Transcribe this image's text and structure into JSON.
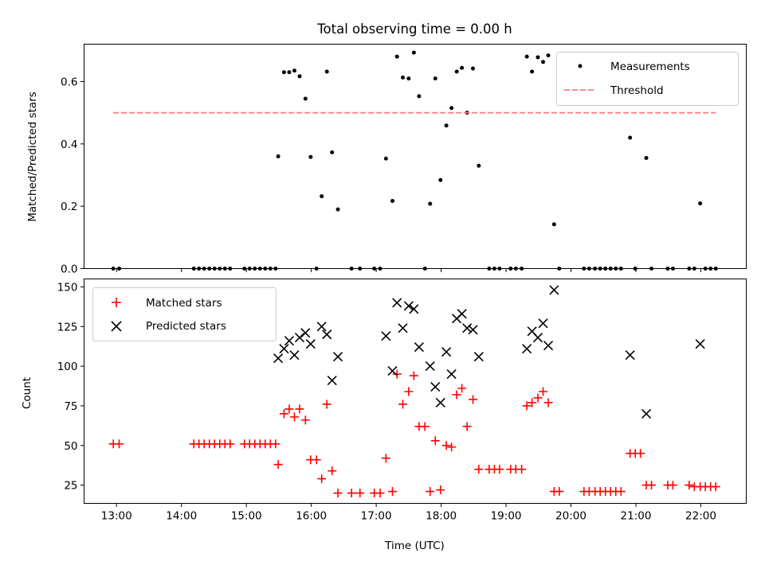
{
  "chart_data": [
    {
      "type": "scatter",
      "title": "Total observing time = 0.00 h",
      "ylabel": "Matched/Predicted stars",
      "xlabel": "",
      "xlim": [
        12.5,
        22.7
      ],
      "ylim": [
        0,
        0.72
      ],
      "yticks": [
        0.0,
        0.2,
        0.4,
        0.6
      ],
      "ytick_labels": [
        "0.0",
        "0.2",
        "0.4",
        "0.6"
      ],
      "legend": {
        "placement": "top-right",
        "entries": [
          "Measurements",
          "Threshold"
        ]
      },
      "series": [
        {
          "name": "Measurements",
          "marker": "dot",
          "color": "#000000",
          "points": [
            [
              12.95,
              0.0
            ],
            [
              13.04,
              0.0
            ],
            [
              14.19,
              0.0
            ],
            [
              14.27,
              0.0
            ],
            [
              14.35,
              0.0
            ],
            [
              14.43,
              0.0
            ],
            [
              14.51,
              0.0
            ],
            [
              14.59,
              0.0
            ],
            [
              14.67,
              0.0
            ],
            [
              14.75,
              0.0
            ],
            [
              14.97,
              0.0
            ],
            [
              15.05,
              0.0
            ],
            [
              15.13,
              0.0
            ],
            [
              15.21,
              0.0
            ],
            [
              15.29,
              0.0
            ],
            [
              15.37,
              0.0
            ],
            [
              15.45,
              0.0
            ],
            [
              15.49,
              0.36
            ],
            [
              15.58,
              0.63
            ],
            [
              15.66,
              0.63
            ],
            [
              15.74,
              0.635
            ],
            [
              15.82,
              0.617
            ],
            [
              15.91,
              0.545
            ],
            [
              15.99,
              0.358
            ],
            [
              16.08,
              0.0
            ],
            [
              16.16,
              0.232
            ],
            [
              16.24,
              0.632
            ],
            [
              16.32,
              0.373
            ],
            [
              16.41,
              0.19
            ],
            [
              16.62,
              0.0
            ],
            [
              16.75,
              0.0
            ],
            [
              16.97,
              0.0
            ],
            [
              17.06,
              0.0
            ],
            [
              17.15,
              0.353
            ],
            [
              17.25,
              0.217
            ],
            [
              17.32,
              0.68
            ],
            [
              17.41,
              0.613
            ],
            [
              17.5,
              0.61
            ],
            [
              17.58,
              0.693
            ],
            [
              17.66,
              0.553
            ],
            [
              17.75,
              0.0
            ],
            [
              17.83,
              0.208
            ],
            [
              17.91,
              0.61
            ],
            [
              17.99,
              0.284
            ],
            [
              18.08,
              0.459
            ],
            [
              18.16,
              0.515
            ],
            [
              18.24,
              0.632
            ],
            [
              18.32,
              0.644
            ],
            [
              18.4,
              0.5
            ],
            [
              18.49,
              0.642
            ],
            [
              18.58,
              0.33
            ],
            [
              18.74,
              0.0
            ],
            [
              18.82,
              0.0
            ],
            [
              18.9,
              0.0
            ],
            [
              19.07,
              0.0
            ],
            [
              19.15,
              0.0
            ],
            [
              19.24,
              0.0
            ],
            [
              19.32,
              0.68
            ],
            [
              19.4,
              0.632
            ],
            [
              19.49,
              0.678
            ],
            [
              19.57,
              0.663
            ],
            [
              19.65,
              0.684
            ],
            [
              19.74,
              0.142
            ],
            [
              19.82,
              0.0
            ],
            [
              20.2,
              0.0
            ],
            [
              20.28,
              0.0
            ],
            [
              20.37,
              0.0
            ],
            [
              20.45,
              0.0
            ],
            [
              20.53,
              0.0
            ],
            [
              20.61,
              0.0
            ],
            [
              20.69,
              0.0
            ],
            [
              20.77,
              0.0
            ],
            [
              20.91,
              0.42
            ],
            [
              20.99,
              0.0
            ],
            [
              21.16,
              0.355
            ],
            [
              21.24,
              0.0
            ],
            [
              21.49,
              0.0
            ],
            [
              21.57,
              0.0
            ],
            [
              21.82,
              0.0
            ],
            [
              21.9,
              0.0
            ],
            [
              21.99,
              0.209
            ],
            [
              22.07,
              0.0
            ],
            [
              22.15,
              0.0
            ],
            [
              22.23,
              0.0
            ]
          ]
        },
        {
          "name": "Threshold",
          "line_style": "dashed",
          "color": "#ff7f7f",
          "points": [
            [
              12.95,
              0.5
            ],
            [
              22.23,
              0.5
            ]
          ]
        }
      ]
    },
    {
      "type": "scatter",
      "title": "",
      "ylabel": "Count",
      "xlabel": "Time (UTC)",
      "xlim": [
        12.5,
        22.7
      ],
      "ylim": [
        13.5,
        155
      ],
      "xticks": [
        13,
        14,
        15,
        16,
        17,
        18,
        19,
        20,
        21,
        22
      ],
      "xtick_labels": [
        "13:00",
        "14:00",
        "15:00",
        "16:00",
        "17:00",
        "18:00",
        "19:00",
        "20:00",
        "21:00",
        "22:00"
      ],
      "yticks": [
        25,
        50,
        75,
        100,
        125,
        150
      ],
      "ytick_labels": [
        "25",
        "50",
        "75",
        "100",
        "125",
        "150"
      ],
      "legend": {
        "placement": "top-left",
        "entries": [
          "Matched stars",
          "Predicted stars"
        ]
      },
      "series": [
        {
          "name": "Matched stars",
          "marker": "plus",
          "color": "#ff0000",
          "points": [
            [
              12.95,
              51
            ],
            [
              13.04,
              51
            ],
            [
              14.19,
              51
            ],
            [
              14.27,
              51
            ],
            [
              14.35,
              51
            ],
            [
              14.43,
              51
            ],
            [
              14.51,
              51
            ],
            [
              14.59,
              51
            ],
            [
              14.67,
              51
            ],
            [
              14.75,
              51
            ],
            [
              14.97,
              51
            ],
            [
              15.05,
              51
            ],
            [
              15.13,
              51
            ],
            [
              15.21,
              51
            ],
            [
              15.29,
              51
            ],
            [
              15.37,
              51
            ],
            [
              15.45,
              51
            ],
            [
              15.49,
              38
            ],
            [
              15.58,
              70
            ],
            [
              15.66,
              73
            ],
            [
              15.74,
              68
            ],
            [
              15.82,
              73
            ],
            [
              15.91,
              66
            ],
            [
              15.99,
              41
            ],
            [
              16.08,
              41
            ],
            [
              16.16,
              29
            ],
            [
              16.24,
              76
            ],
            [
              16.32,
              34
            ],
            [
              16.41,
              20
            ],
            [
              16.62,
              20
            ],
            [
              16.75,
              20
            ],
            [
              16.97,
              20
            ],
            [
              17.06,
              20
            ],
            [
              17.15,
              42
            ],
            [
              17.25,
              21
            ],
            [
              17.32,
              95
            ],
            [
              17.41,
              76
            ],
            [
              17.5,
              84
            ],
            [
              17.58,
              94
            ],
            [
              17.66,
              62
            ],
            [
              17.75,
              62
            ],
            [
              17.83,
              21
            ],
            [
              17.91,
              53
            ],
            [
              17.99,
              22
            ],
            [
              18.08,
              50
            ],
            [
              18.16,
              49
            ],
            [
              18.24,
              82
            ],
            [
              18.32,
              86
            ],
            [
              18.4,
              62
            ],
            [
              18.49,
              79
            ],
            [
              18.58,
              35
            ],
            [
              18.74,
              35
            ],
            [
              18.82,
              35
            ],
            [
              18.9,
              35
            ],
            [
              19.07,
              35
            ],
            [
              19.15,
              35
            ],
            [
              19.24,
              35
            ],
            [
              19.32,
              75
            ],
            [
              19.4,
              77
            ],
            [
              19.49,
              80
            ],
            [
              19.57,
              84
            ],
            [
              19.65,
              77
            ],
            [
              19.74,
              21
            ],
            [
              19.82,
              21
            ],
            [
              20.2,
              21
            ],
            [
              20.28,
              21
            ],
            [
              20.37,
              21
            ],
            [
              20.45,
              21
            ],
            [
              20.53,
              21
            ],
            [
              20.61,
              21
            ],
            [
              20.69,
              21
            ],
            [
              20.77,
              21
            ],
            [
              20.91,
              45
            ],
            [
              20.99,
              45
            ],
            [
              21.07,
              45
            ],
            [
              21.16,
              25
            ],
            [
              21.24,
              25
            ],
            [
              21.49,
              25
            ],
            [
              21.57,
              25
            ],
            [
              21.82,
              25
            ],
            [
              21.9,
              24
            ],
            [
              21.99,
              24
            ],
            [
              22.07,
              24
            ],
            [
              22.15,
              24
            ],
            [
              22.23,
              24
            ]
          ]
        },
        {
          "name": "Predicted stars",
          "marker": "x",
          "color": "#000000",
          "points": [
            [
              15.49,
              105
            ],
            [
              15.58,
              111
            ],
            [
              15.66,
              116
            ],
            [
              15.74,
              107
            ],
            [
              15.82,
              118
            ],
            [
              15.91,
              121
            ],
            [
              15.99,
              114
            ],
            [
              16.16,
              125
            ],
            [
              16.24,
              120
            ],
            [
              16.32,
              91
            ],
            [
              16.41,
              106
            ],
            [
              17.15,
              119
            ],
            [
              17.25,
              97
            ],
            [
              17.32,
              140
            ],
            [
              17.41,
              124
            ],
            [
              17.5,
              138
            ],
            [
              17.58,
              136
            ],
            [
              17.66,
              112
            ],
            [
              17.83,
              100
            ],
            [
              17.91,
              87
            ],
            [
              17.99,
              77
            ],
            [
              18.08,
              109
            ],
            [
              18.16,
              95
            ],
            [
              18.24,
              130
            ],
            [
              18.32,
              133
            ],
            [
              18.4,
              124
            ],
            [
              18.49,
              123
            ],
            [
              18.58,
              106
            ],
            [
              19.32,
              111
            ],
            [
              19.4,
              122
            ],
            [
              19.49,
              118
            ],
            [
              19.57,
              127
            ],
            [
              19.65,
              113
            ],
            [
              19.74,
              148
            ],
            [
              20.91,
              107
            ],
            [
              21.16,
              70
            ],
            [
              21.99,
              114
            ]
          ]
        }
      ]
    }
  ]
}
